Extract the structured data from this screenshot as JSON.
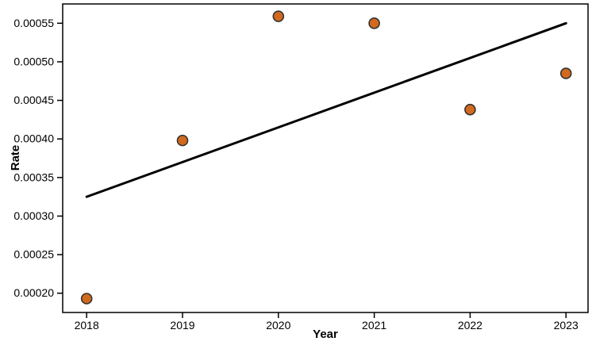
{
  "chart_data": {
    "type": "scatter",
    "title": "",
    "xlabel": "Year",
    "ylabel": "Rate",
    "x": [
      2018,
      2019,
      2020,
      2021,
      2022,
      2023
    ],
    "y": [
      0.000193,
      0.000398,
      0.000559,
      0.00055,
      0.000438,
      0.000485
    ],
    "x_tick_labels": [
      "2018",
      "2019",
      "2020",
      "2021",
      "2022",
      "2023"
    ],
    "x_tick_values": [
      2018,
      2019,
      2020,
      2021,
      2022,
      2023
    ],
    "y_tick_labels": [
      "0.00020",
      "0.00025",
      "0.00030",
      "0.00035",
      "0.00040",
      "0.00045",
      "0.00050",
      "0.00055"
    ],
    "y_tick_values": [
      0.0002,
      0.00025,
      0.0003,
      0.00035,
      0.0004,
      0.00045,
      0.0005,
      0.00055
    ],
    "xlim": [
      2017.75,
      2023.23
    ],
    "ylim": [
      0.000175,
      0.000575
    ],
    "grid": false,
    "legend": null,
    "trendline": {
      "x1": 2018,
      "y1": 0.000325,
      "x2": 2023,
      "y2": 0.00055
    },
    "colors": {
      "marker_fill": "#D2691E",
      "marker_stroke": "#333333",
      "trend_line": "#000000",
      "axis": "#000000",
      "text": "#000000",
      "background": "#ffffff"
    },
    "marker_radius": 6.5
  }
}
